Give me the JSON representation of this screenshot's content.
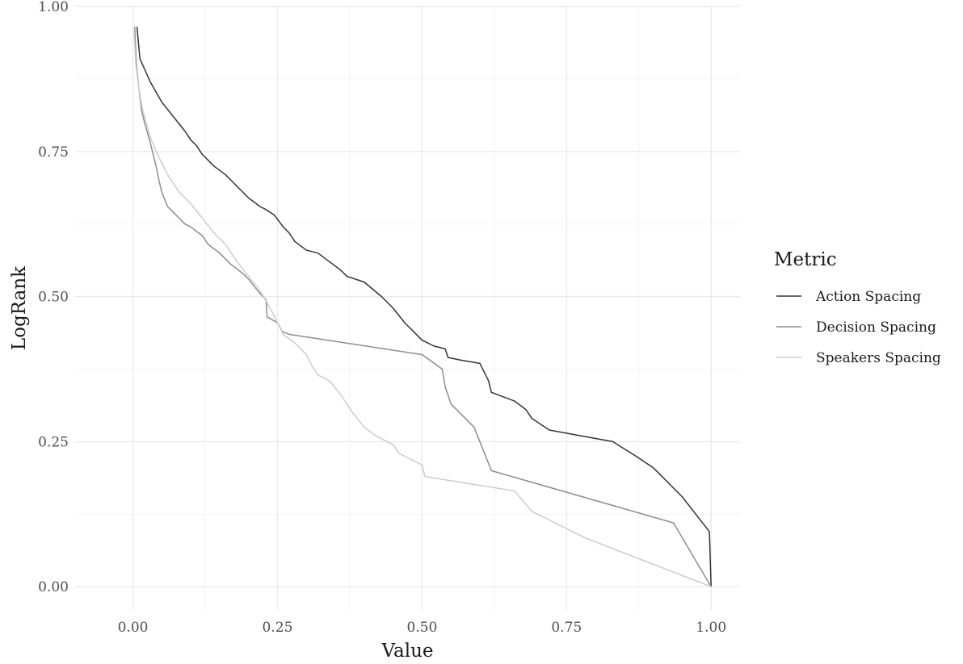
{
  "chart_data": {
    "type": "line",
    "xlabel": "Value",
    "ylabel": "LogRank",
    "xlim": [
      -0.1,
      1.05
    ],
    "ylim": [
      -0.04,
      1.0
    ],
    "x_ticks": [
      0.0,
      0.25,
      0.5,
      0.75,
      1.0
    ],
    "x_tick_labels": [
      "0.00",
      "0.25",
      "0.50",
      "0.75",
      "1.00"
    ],
    "y_ticks": [
      0.0,
      0.25,
      0.5,
      0.75,
      1.0
    ],
    "y_tick_labels": [
      "0.00",
      "0.25",
      "0.50",
      "0.75",
      "1.00"
    ],
    "grid": true,
    "legend": {
      "title": "Metric",
      "position": "right"
    },
    "series": [
      {
        "name": "Action Spacing",
        "color": "#333333",
        "points": [
          [
            0.007,
            0.965
          ],
          [
            0.012,
            0.91
          ],
          [
            0.03,
            0.87
          ],
          [
            0.05,
            0.835
          ],
          [
            0.07,
            0.81
          ],
          [
            0.09,
            0.785
          ],
          [
            0.1,
            0.77
          ],
          [
            0.11,
            0.76
          ],
          [
            0.12,
            0.745
          ],
          [
            0.14,
            0.725
          ],
          [
            0.16,
            0.71
          ],
          [
            0.17,
            0.7
          ],
          [
            0.19,
            0.68
          ],
          [
            0.2,
            0.67
          ],
          [
            0.22,
            0.655
          ],
          [
            0.23,
            0.65
          ],
          [
            0.245,
            0.64
          ],
          [
            0.26,
            0.62
          ],
          [
            0.27,
            0.61
          ],
          [
            0.28,
            0.595
          ],
          [
            0.3,
            0.58
          ],
          [
            0.32,
            0.575
          ],
          [
            0.34,
            0.56
          ],
          [
            0.36,
            0.545
          ],
          [
            0.37,
            0.535
          ],
          [
            0.4,
            0.525
          ],
          [
            0.43,
            0.5
          ],
          [
            0.45,
            0.48
          ],
          [
            0.47,
            0.455
          ],
          [
            0.5,
            0.425
          ],
          [
            0.52,
            0.415
          ],
          [
            0.54,
            0.41
          ],
          [
            0.545,
            0.395
          ],
          [
            0.57,
            0.39
          ],
          [
            0.6,
            0.385
          ],
          [
            0.615,
            0.355
          ],
          [
            0.62,
            0.335
          ],
          [
            0.66,
            0.32
          ],
          [
            0.68,
            0.305
          ],
          [
            0.69,
            0.29
          ],
          [
            0.72,
            0.27
          ],
          [
            0.83,
            0.25
          ],
          [
            0.87,
            0.225
          ],
          [
            0.9,
            0.205
          ],
          [
            0.95,
            0.155
          ],
          [
            0.997,
            0.095
          ],
          [
            1.0,
            0.0
          ]
        ]
      },
      {
        "name": "Decision Spacing",
        "color": "#8c8c8c",
        "points": [
          [
            0.003,
            0.965
          ],
          [
            0.006,
            0.9
          ],
          [
            0.01,
            0.86
          ],
          [
            0.015,
            0.82
          ],
          [
            0.02,
            0.8
          ],
          [
            0.03,
            0.765
          ],
          [
            0.035,
            0.745
          ],
          [
            0.04,
            0.725
          ],
          [
            0.045,
            0.7
          ],
          [
            0.05,
            0.68
          ],
          [
            0.06,
            0.655
          ],
          [
            0.07,
            0.645
          ],
          [
            0.08,
            0.635
          ],
          [
            0.09,
            0.625
          ],
          [
            0.1,
            0.62
          ],
          [
            0.12,
            0.605
          ],
          [
            0.13,
            0.59
          ],
          [
            0.15,
            0.575
          ],
          [
            0.17,
            0.555
          ],
          [
            0.19,
            0.54
          ],
          [
            0.2,
            0.53
          ],
          [
            0.22,
            0.505
          ],
          [
            0.23,
            0.495
          ],
          [
            0.232,
            0.465
          ],
          [
            0.25,
            0.455
          ],
          [
            0.258,
            0.44
          ],
          [
            0.27,
            0.435
          ],
          [
            0.5,
            0.4
          ],
          [
            0.535,
            0.375
          ],
          [
            0.54,
            0.345
          ],
          [
            0.55,
            0.315
          ],
          [
            0.59,
            0.275
          ],
          [
            0.62,
            0.2
          ],
          [
            0.935,
            0.11
          ],
          [
            1.0,
            0.0
          ]
        ]
      },
      {
        "name": "Speakers Spacing",
        "color": "#cccccc",
        "points": [
          [
            0.002,
            0.955
          ],
          [
            0.005,
            0.9
          ],
          [
            0.01,
            0.86
          ],
          [
            0.015,
            0.83
          ],
          [
            0.02,
            0.81
          ],
          [
            0.03,
            0.775
          ],
          [
            0.04,
            0.75
          ],
          [
            0.05,
            0.73
          ],
          [
            0.06,
            0.71
          ],
          [
            0.07,
            0.695
          ],
          [
            0.08,
            0.68
          ],
          [
            0.1,
            0.66
          ],
          [
            0.12,
            0.635
          ],
          [
            0.14,
            0.61
          ],
          [
            0.16,
            0.59
          ],
          [
            0.18,
            0.56
          ],
          [
            0.2,
            0.535
          ],
          [
            0.22,
            0.51
          ],
          [
            0.24,
            0.475
          ],
          [
            0.26,
            0.435
          ],
          [
            0.28,
            0.42
          ],
          [
            0.3,
            0.4
          ],
          [
            0.31,
            0.38
          ],
          [
            0.32,
            0.365
          ],
          [
            0.34,
            0.355
          ],
          [
            0.36,
            0.33
          ],
          [
            0.37,
            0.315
          ],
          [
            0.38,
            0.3
          ],
          [
            0.4,
            0.275
          ],
          [
            0.42,
            0.26
          ],
          [
            0.45,
            0.245
          ],
          [
            0.46,
            0.23
          ],
          [
            0.49,
            0.215
          ],
          [
            0.5,
            0.21
          ],
          [
            0.505,
            0.19
          ],
          [
            0.66,
            0.165
          ],
          [
            0.69,
            0.13
          ],
          [
            0.78,
            0.085
          ],
          [
            1.0,
            0.0
          ]
        ]
      }
    ]
  }
}
